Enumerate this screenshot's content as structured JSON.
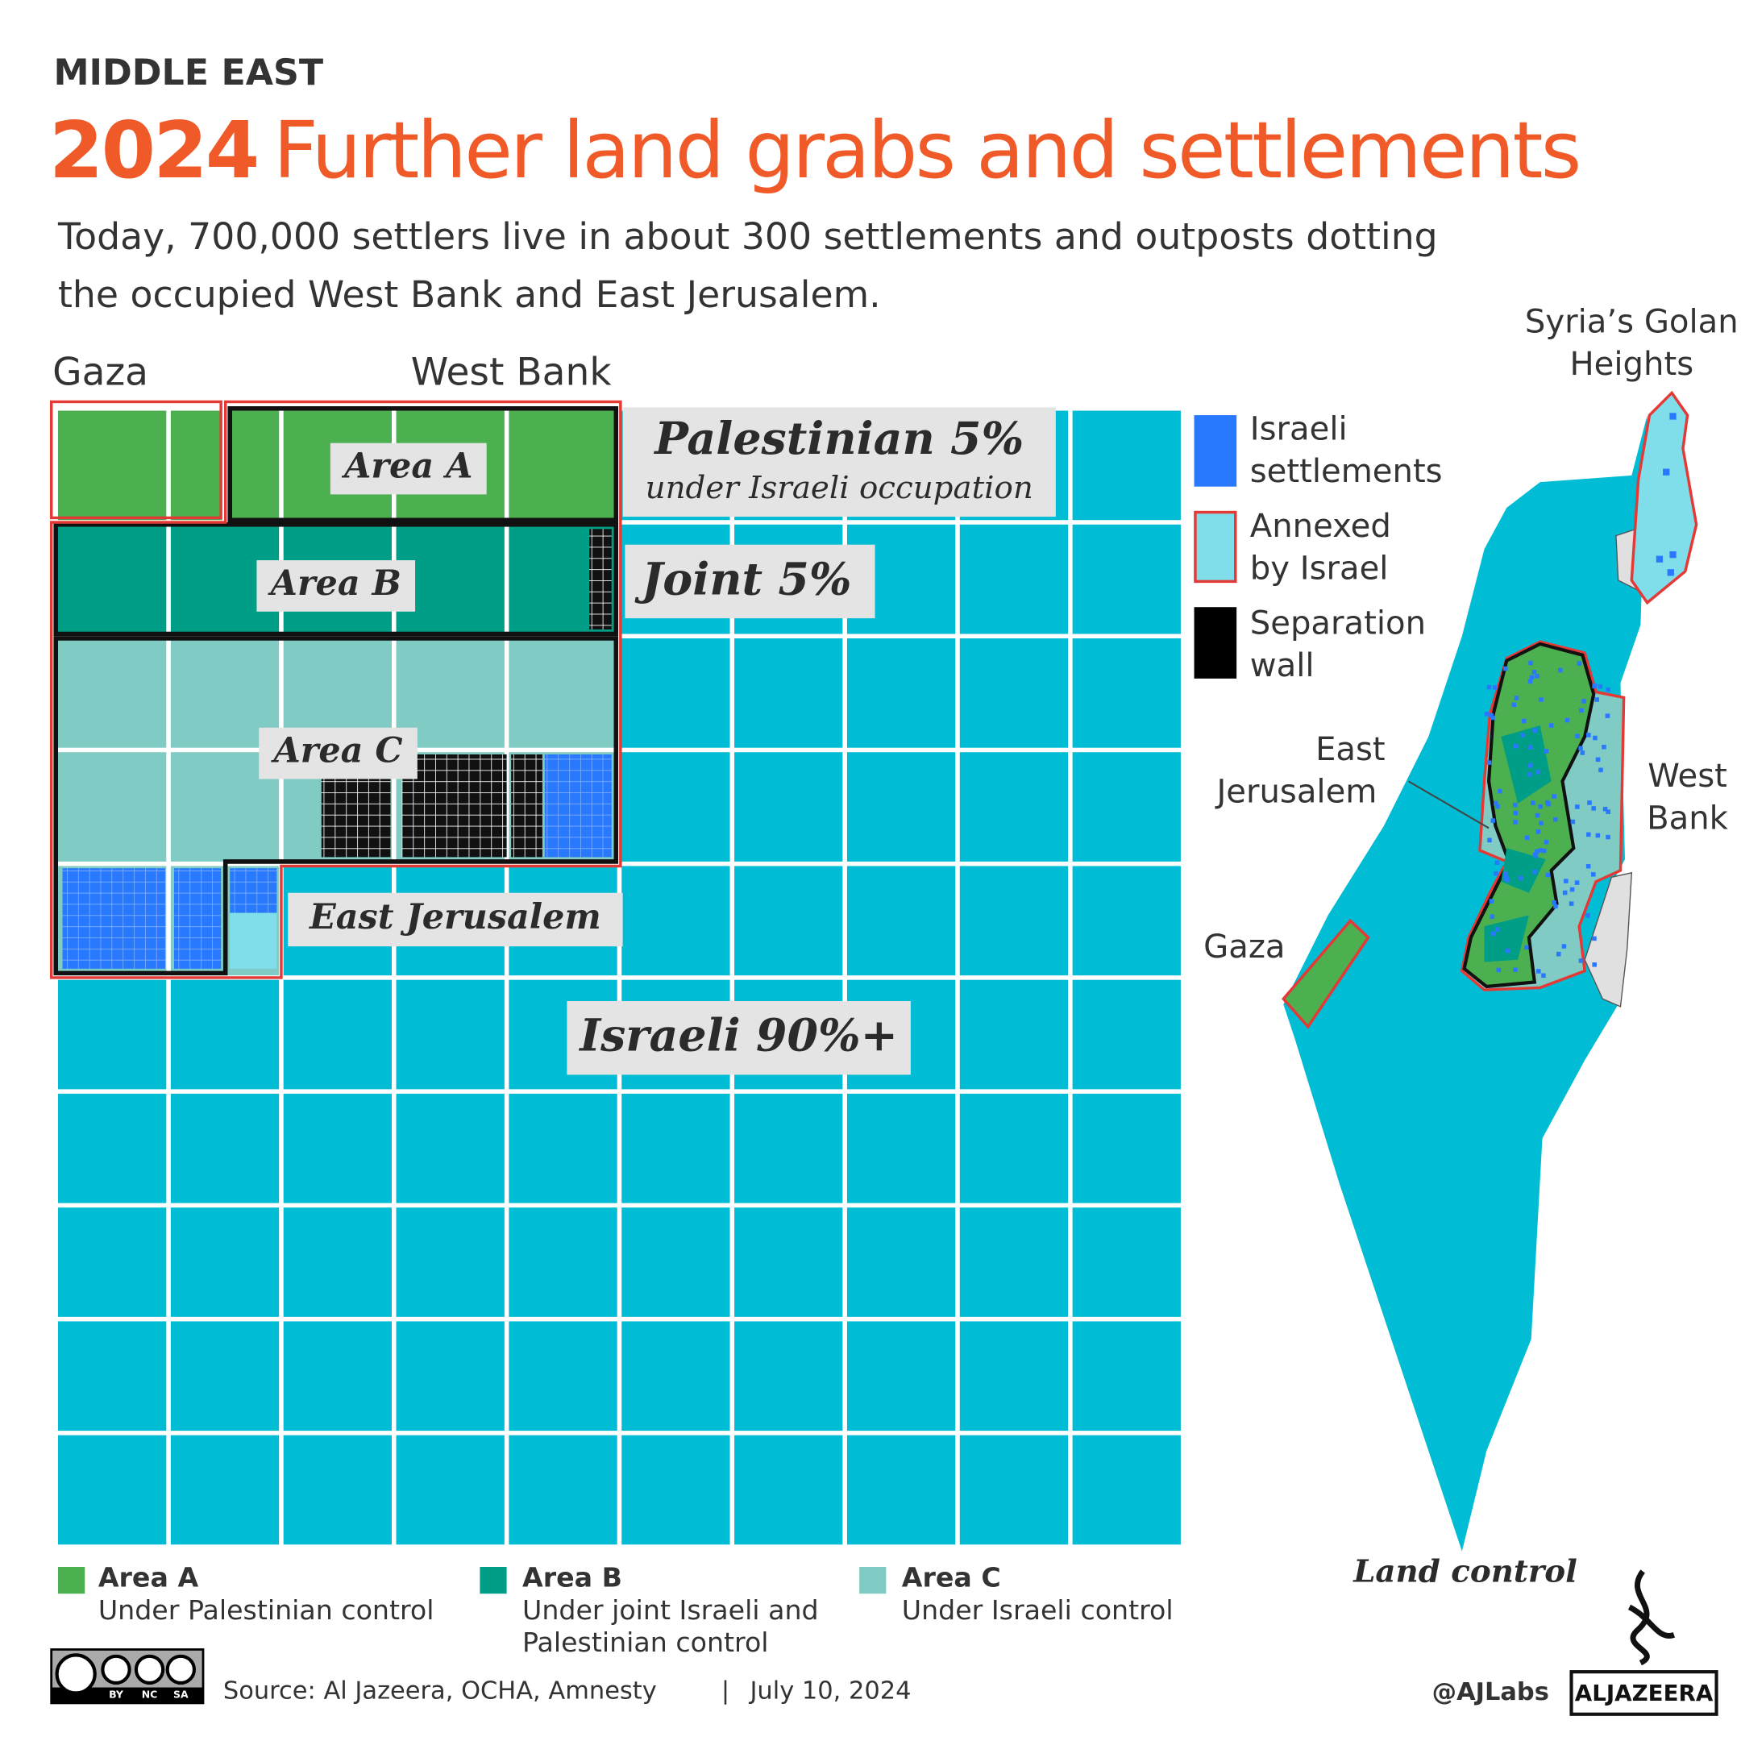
{
  "header": {
    "section": "MIDDLE EAST",
    "title_year": "2024",
    "title_rest": "Further land grabs and settlements",
    "subtitle_lines": [
      "Today, 700,000 settlers live in about 300 settlements and outposts dotting",
      "the occupied West Bank and East Jerusalem."
    ]
  },
  "grid": {
    "gaza": "Gaza",
    "west_bank": "West Bank",
    "area_a": "Area A",
    "area_b": "Area B",
    "area_c": "Area C",
    "east_jerusalem": "East Jerusalem",
    "palestinian": "Palestinian 5%",
    "palestinian_note": "under Israeli occupation",
    "joint": "Joint 5%",
    "israeli": "Israeli 90%+"
  },
  "legend": [
    {
      "name": "Area A",
      "desc_lines": [
        "Under Palestinian control"
      ]
    },
    {
      "name": "Area B",
      "desc_lines": [
        "Under joint Israeli and",
        "Palestinian control"
      ]
    },
    {
      "name": "Area C",
      "desc_lines": [
        "Under Israeli control"
      ]
    }
  ],
  "map": {
    "legend": [
      {
        "lines": [
          "Israeli",
          "settlements"
        ]
      },
      {
        "lines": [
          "Annexed",
          "by Israel"
        ]
      },
      {
        "lines": [
          "Separation",
          "wall"
        ]
      }
    ],
    "golan_lines": [
      "Syria’s Golan",
      "Heights"
    ],
    "east_jerusalem_lines": [
      "East",
      "Jerusalem"
    ],
    "west_bank_lines": [
      "West",
      "Bank"
    ],
    "gaza": "Gaza",
    "caption": "Land control"
  },
  "footer": {
    "license": [
      "BY",
      "NC",
      "SA"
    ],
    "source": "Source: Al Jazeera, OCHA, Amnesty",
    "separator": "|",
    "date": "July 10, 2024",
    "handle": "@AJLabs",
    "brand": "ALJAZEERA"
  }
}
